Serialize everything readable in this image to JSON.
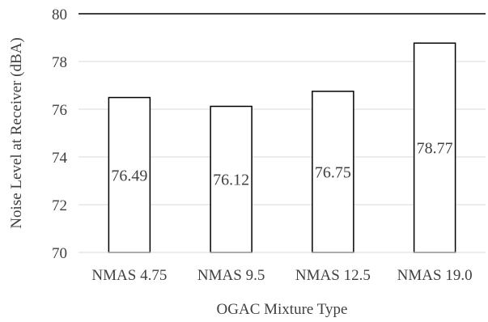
{
  "chart_data": {
    "type": "bar",
    "categories": [
      "NMAS 4.75",
      "NMAS 9.5",
      "NMAS 12.5",
      "NMAS 19.0"
    ],
    "values": [
      76.49,
      76.12,
      76.75,
      78.77
    ],
    "data_labels": [
      "76.49",
      "76.12",
      "76.75",
      "78.77"
    ],
    "title": "",
    "xlabel": "OGAC Mixture Type",
    "ylabel": "Noise Level at Receiver (dBA)",
    "ylim": [
      70,
      80
    ],
    "yticks": [
      70,
      72,
      74,
      76,
      78,
      80
    ],
    "ytick_labels": [
      "70",
      "72",
      "74",
      "76",
      "78",
      "80"
    ],
    "grid": true,
    "legend": "none",
    "colors": {
      "bar_fill": "#ffffff",
      "bar_stroke": "#000000",
      "grid": "#d9d9d9",
      "text": "#404040"
    }
  }
}
